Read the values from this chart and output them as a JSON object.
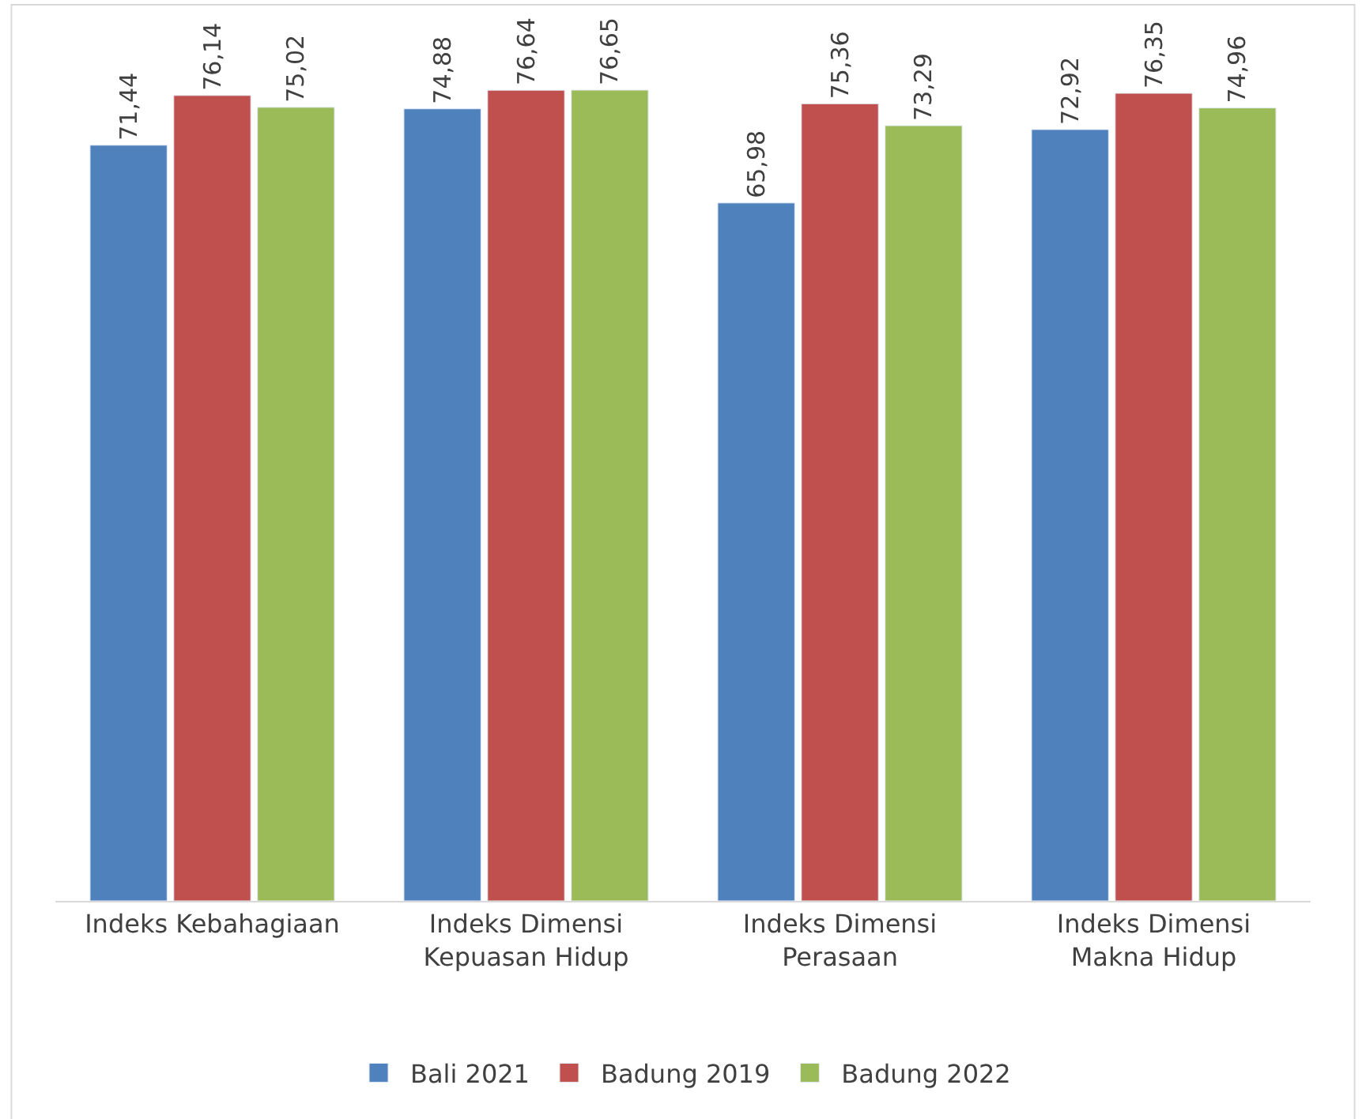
{
  "chart_data": {
    "type": "bar",
    "categories": [
      "Indeks Kebahagiaan",
      "Indeks Dimensi Kepuasan Hidup",
      "Indeks Dimensi Perasaan",
      "Indeks Dimensi Makna Hidup"
    ],
    "series": [
      {
        "name": "Bali 2021",
        "color": "#4f81bd",
        "values": [
          71.44,
          74.88,
          65.98,
          72.92
        ],
        "value_labels": [
          "71,44",
          "74,88",
          "65,98",
          "72,92"
        ]
      },
      {
        "name": "Badung 2019",
        "color": "#c0504d",
        "values": [
          76.14,
          76.64,
          75.36,
          76.35
        ],
        "value_labels": [
          "76,14",
          "76,64",
          "75,36",
          "76,35"
        ]
      },
      {
        "name": "Badung 2022",
        "color": "#9bbb59",
        "values": [
          75.02,
          76.65,
          73.29,
          74.96
        ],
        "value_labels": [
          "75,02",
          "76,65",
          "73,29",
          "74,96"
        ]
      }
    ],
    "tick_labels": "x",
    "legend": "bottom"
  }
}
